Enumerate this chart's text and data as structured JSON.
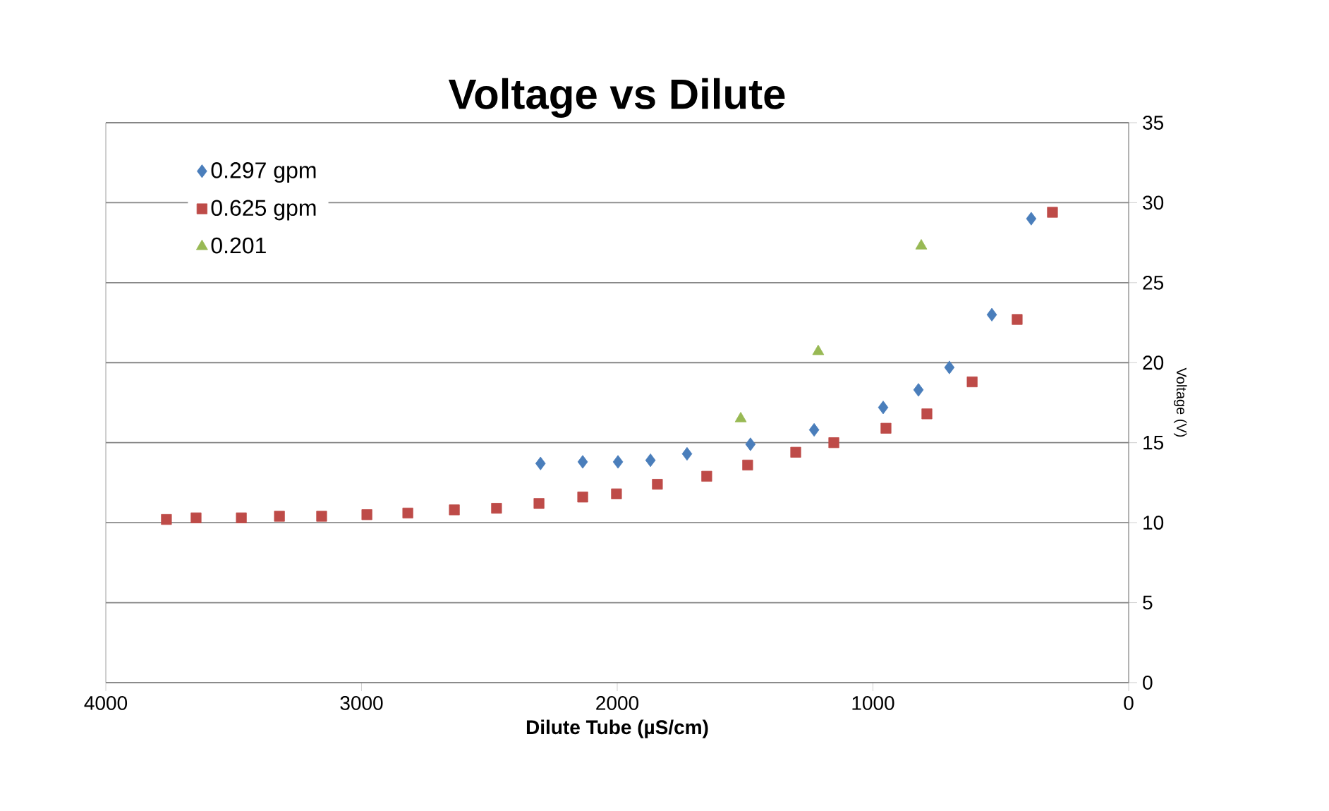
{
  "chart_data": {
    "type": "scatter",
    "title": "Voltage vs Dilute",
    "xlabel": "Dilute Tube (µS/cm)",
    "ylabel": "Voltage (V)",
    "xlim": [
      4000,
      0
    ],
    "xticks": [
      4000,
      3000,
      2000,
      1000,
      0
    ],
    "ylim": [
      0,
      35
    ],
    "yticks": [
      0,
      5,
      10,
      15,
      20,
      25,
      30,
      35
    ],
    "grid": "y",
    "legend": "top left",
    "series": [
      {
        "name": "0.297 gpm",
        "color": "#4a7ebb",
        "marker": "diamond",
        "x": [
          2300,
          2135,
          1997,
          1870,
          1727,
          1479,
          1230,
          960,
          822,
          701,
          535,
          381
        ],
        "values": [
          13.7,
          13.8,
          13.8,
          13.9,
          14.3,
          14.9,
          15.8,
          17.2,
          18.3,
          19.7,
          23.0,
          29.0
        ]
      },
      {
        "name": "0.625 gpm",
        "color": "#be4b48",
        "marker": "square",
        "x": [
          3763,
          3647,
          3470,
          3321,
          3156,
          2979,
          2819,
          2637,
          2472,
          2306,
          2135,
          2003,
          1843,
          1650,
          1490,
          1302,
          1153,
          949,
          789,
          612,
          436,
          298
        ],
        "values": [
          10.2,
          10.3,
          10.3,
          10.4,
          10.4,
          10.5,
          10.6,
          10.8,
          10.9,
          11.2,
          11.6,
          11.8,
          12.4,
          12.9,
          13.6,
          14.4,
          15.0,
          15.9,
          16.8,
          18.8,
          22.7,
          29.4
        ]
      },
      {
        "name": "0.201",
        "color": "#98b954",
        "marker": "triangle",
        "x": [
          1517,
          1214,
          811
        ],
        "values": [
          16.5,
          20.7,
          27.3
        ]
      }
    ]
  }
}
